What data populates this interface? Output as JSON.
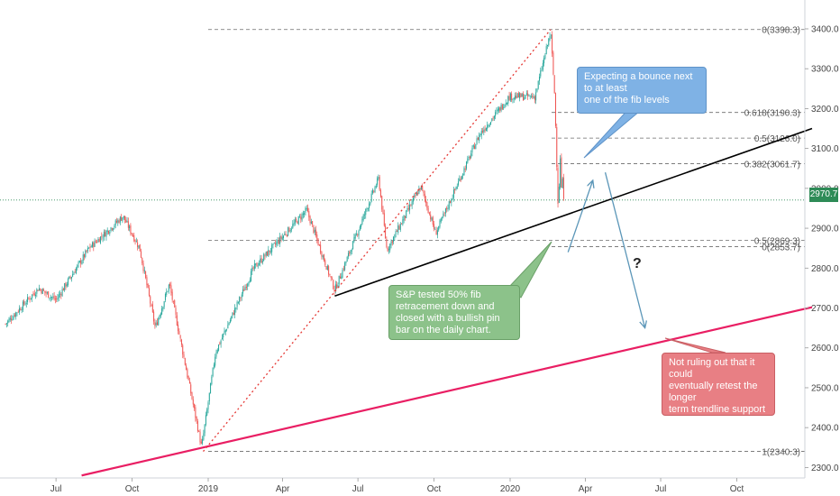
{
  "chart_data": {
    "type": "candlestick",
    "instrument": "S&P 500",
    "x_ticks": [
      "Jul",
      "Oct",
      "2019",
      "Apr",
      "Jul",
      "Oct",
      "2020",
      "Apr",
      "Jul",
      "Oct"
    ],
    "y_ticks": [
      "2300.0",
      "2400.0",
      "2500.0",
      "2600.0",
      "2700.0",
      "2800.0",
      "2900.0",
      "3000.0",
      "3100.0",
      "3200.0",
      "3300.0",
      "3400.0"
    ],
    "ylim": [
      2280,
      3435
    ],
    "current_price": "2970.7",
    "series_anchors": [
      {
        "date": "2018-05-01",
        "value": 2660
      },
      {
        "date": "2018-06-10",
        "value": 2750
      },
      {
        "date": "2018-07-01",
        "value": 2720
      },
      {
        "date": "2018-08-10",
        "value": 2850
      },
      {
        "date": "2018-09-20",
        "value": 2930
      },
      {
        "date": "2018-10-10",
        "value": 2850
      },
      {
        "date": "2018-10-29",
        "value": 2650
      },
      {
        "date": "2018-11-15",
        "value": 2760
      },
      {
        "date": "2018-12-24",
        "value": 2351
      },
      {
        "date": "2019-01-10",
        "value": 2590
      },
      {
        "date": "2019-02-25",
        "value": 2800
      },
      {
        "date": "2019-04-30",
        "value": 2945
      },
      {
        "date": "2019-06-03",
        "value": 2745
      },
      {
        "date": "2019-07-26",
        "value": 3025
      },
      {
        "date": "2019-08-05",
        "value": 2845
      },
      {
        "date": "2019-09-15",
        "value": 3005
      },
      {
        "date": "2019-10-03",
        "value": 2887
      },
      {
        "date": "2019-11-25",
        "value": 3135
      },
      {
        "date": "2019-12-31",
        "value": 3230
      },
      {
        "date": "2020-01-31",
        "value": 3230
      },
      {
        "date": "2020-02-19",
        "value": 3393
      },
      {
        "date": "2020-02-24",
        "value": 3225
      },
      {
        "date": "2020-02-28",
        "value": 2954
      },
      {
        "date": "2020-03-02",
        "value": 3090
      },
      {
        "date": "2020-03-03",
        "value": 3003
      },
      {
        "date": "2020-03-05",
        "value": 3023
      },
      {
        "date": "2020-03-06",
        "value": 2972
      }
    ],
    "fib_levels": [
      {
        "label": "0(3398.3)",
        "value": 3398.3
      },
      {
        "label": "0.618(3190.3)",
        "value": 3190.3
      },
      {
        "label": "0.5(3126.0)",
        "value": 3126.0
      },
      {
        "label": "0.382(3061.7)",
        "value": 3061.7
      },
      {
        "label": "0.5(2869.3)",
        "value": 2869.3
      },
      {
        "label": "0(2853.7)",
        "value": 2853.7
      },
      {
        "label": "1(2340.3)",
        "value": 2340.3
      }
    ],
    "trendlines": [
      {
        "name": "black-support",
        "color": "#000000",
        "from": {
          "date": "2019-06-03",
          "value": 2730
        },
        "to": {
          "date": "2020-12-31",
          "value": 3150
        }
      },
      {
        "name": "pink-long-term-support",
        "color": "#e91e63",
        "from": {
          "date": "2018-08-01",
          "value": 2280
        },
        "to": {
          "date": "2020-12-31",
          "value": 2702
        }
      },
      {
        "name": "fib-swing-dotted",
        "color": "#e53935",
        "from": {
          "date": "2018-12-26",
          "value": 2340.3
        },
        "to": {
          "date": "2020-02-19",
          "value": 3398.3
        }
      }
    ],
    "projection_arrows": [
      {
        "name": "bounce-arrow",
        "from": {
          "date": "2020-03-11",
          "value": 2840
        },
        "to": {
          "date": "2020-04-10",
          "value": 3020
        }
      },
      {
        "name": "drop-arrow",
        "from": {
          "date": "2020-04-25",
          "value": 3040
        },
        "to": {
          "date": "2020-06-12",
          "value": 2650
        }
      }
    ],
    "annotations": {
      "bounce": "Expecting a bounce next\nto at least\none of the fib levels",
      "tested": "S&P tested 50% fib\nretracement down and\nclosed with a bullish pin\nbar on the daily chart.",
      "retest": "Not ruling out that it\ncould\neventually retest the\nlonger\nterm trendline support",
      "question": "?"
    },
    "colors": {
      "up": "#26a69a",
      "down": "#ef5350",
      "current_line": "#2e8b57"
    }
  }
}
